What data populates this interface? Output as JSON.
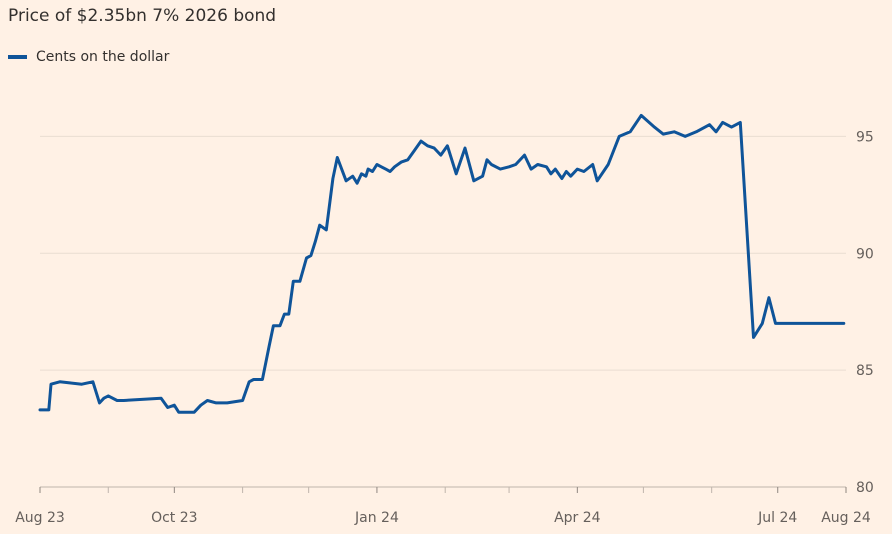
{
  "chart_data": {
    "type": "line",
    "title": "Price of $2.35bn 7% 2026 bond",
    "ylim": [
      80,
      97.5
    ],
    "yticks": [
      80,
      85,
      90,
      95
    ],
    "xticks": [
      {
        "date": "2023-08-01",
        "label": "Aug 23"
      },
      {
        "date": "2023-10-01",
        "label": "Oct 23"
      },
      {
        "date": "2024-01-01",
        "label": "Jan 24"
      },
      {
        "date": "2024-04-01",
        "label": "Apr 24"
      },
      {
        "date": "2024-07-01",
        "label": "Jul 24"
      },
      {
        "date": "2024-08-01",
        "label": "Aug 24"
      }
    ],
    "minor_xticks": [
      "2023-09-01",
      "2023-11-01",
      "2023-12-01",
      "2024-02-01",
      "2024-03-01",
      "2024-05-01",
      "2024-06-01"
    ],
    "grid": true,
    "legend_position": "top-left",
    "series": [
      {
        "name": "Cents on the dollar",
        "color": "#0f5499",
        "x": [
          "2023-08-01",
          "2023-08-05",
          "2023-08-06",
          "2023-08-10",
          "2023-08-20",
          "2023-08-25",
          "2023-08-28",
          "2023-08-30",
          "2023-09-01",
          "2023-09-05",
          "2023-09-08",
          "2023-09-25",
          "2023-09-28",
          "2023-10-01",
          "2023-10-03",
          "2023-10-05",
          "2023-10-10",
          "2023-10-13",
          "2023-10-16",
          "2023-10-20",
          "2023-10-25",
          "2023-11-01",
          "2023-11-04",
          "2023-11-06",
          "2023-11-10",
          "2023-11-13",
          "2023-11-15",
          "2023-11-18",
          "2023-11-20",
          "2023-11-22",
          "2023-11-24",
          "2023-11-27",
          "2023-11-30",
          "2023-12-02",
          "2023-12-04",
          "2023-12-06",
          "2023-12-09",
          "2023-12-12",
          "2023-12-14",
          "2023-12-18",
          "2023-12-21",
          "2023-12-23",
          "2023-12-25",
          "2023-12-27",
          "2023-12-28",
          "2023-12-30",
          "2024-01-01",
          "2024-01-03",
          "2024-01-05",
          "2024-01-07",
          "2024-01-09",
          "2024-01-12",
          "2024-01-15",
          "2024-01-18",
          "2024-01-21",
          "2024-01-24",
          "2024-01-27",
          "2024-01-30",
          "2024-02-02",
          "2024-02-06",
          "2024-02-10",
          "2024-02-14",
          "2024-02-18",
          "2024-02-20",
          "2024-02-22",
          "2024-02-26",
          "2024-03-01",
          "2024-03-04",
          "2024-03-08",
          "2024-03-11",
          "2024-03-14",
          "2024-03-18",
          "2024-03-20",
          "2024-03-22",
          "2024-03-25",
          "2024-03-27",
          "2024-03-29",
          "2024-04-01",
          "2024-04-04",
          "2024-04-08",
          "2024-04-10",
          "2024-04-15",
          "2024-04-20",
          "2024-04-25",
          "2024-04-30",
          "2024-05-06",
          "2024-05-10",
          "2024-05-15",
          "2024-05-20",
          "2024-05-25",
          "2024-05-31",
          "2024-06-03",
          "2024-06-06",
          "2024-06-10",
          "2024-06-14",
          "2024-06-20",
          "2024-06-24",
          "2024-06-27",
          "2024-06-30",
          "2024-07-02",
          "2024-07-05",
          "2024-07-08",
          "2024-07-12",
          "2024-07-15",
          "2024-07-18",
          "2024-07-21",
          "2024-07-23",
          "2024-07-24",
          "2024-07-25",
          "2024-07-27",
          "2024-07-29",
          "2024-07-31"
        ],
        "values": [
          83.3,
          83.3,
          84.4,
          84.5,
          84.4,
          84.5,
          83.6,
          83.8,
          83.9,
          83.7,
          83.7,
          83.8,
          83.4,
          83.5,
          83.2,
          83.2,
          83.2,
          83.5,
          83.7,
          83.6,
          83.6,
          83.7,
          84.5,
          84.6,
          84.6,
          86.0,
          86.9,
          86.9,
          87.4,
          87.4,
          88.8,
          88.8,
          89.8,
          89.9,
          90.5,
          91.2,
          91.0,
          93.2,
          94.1,
          93.1,
          93.3,
          93.0,
          93.4,
          93.3,
          93.6,
          93.5,
          93.8,
          93.7,
          93.6,
          93.5,
          93.7,
          93.9,
          94.0,
          94.4,
          94.8,
          94.6,
          94.5,
          94.2,
          94.6,
          93.4,
          94.5,
          93.1,
          93.3,
          94.0,
          93.8,
          93.6,
          93.7,
          93.8,
          94.2,
          93.6,
          93.8,
          93.7,
          93.4,
          93.6,
          93.2,
          93.5,
          93.3,
          93.6,
          93.5,
          93.8,
          93.1,
          93.8,
          95.0,
          95.2,
          95.9,
          95.4,
          95.1,
          95.2,
          95.0,
          95.2,
          95.5,
          95.2,
          95.6,
          95.4,
          95.6,
          86.4,
          87.0,
          88.1,
          87.0,
          87.0,
          87.0,
          87.0,
          87.0,
          87.0,
          87.0,
          87.0,
          87.0,
          87.0,
          87.0,
          87.0,
          87.0,
          87.0
        ]
      }
    ]
  }
}
